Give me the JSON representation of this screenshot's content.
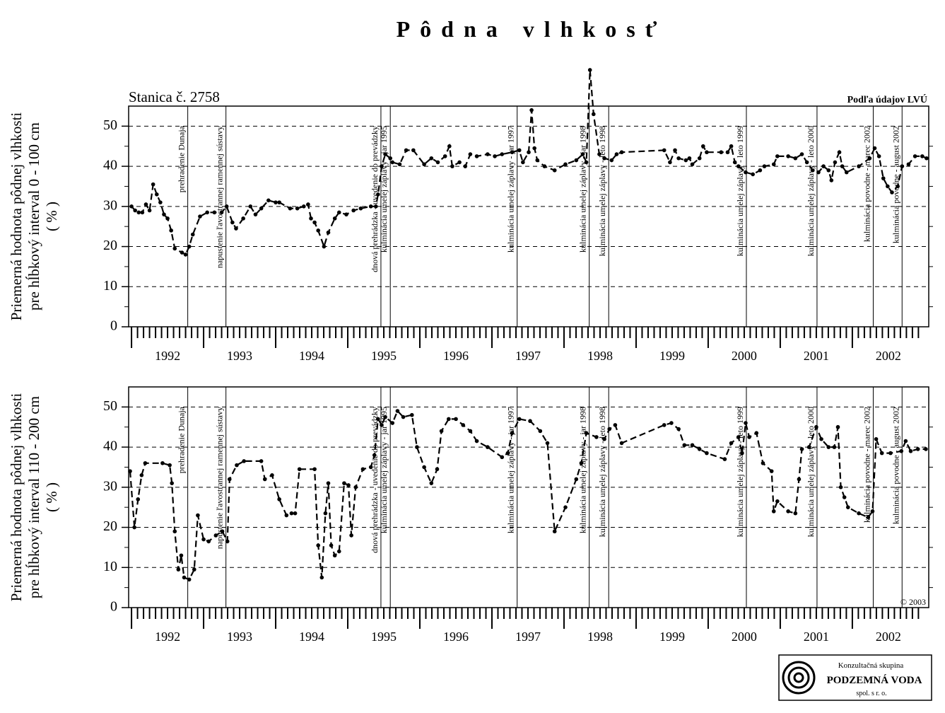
{
  "title": "Pôdna vlhkosť",
  "logo": {
    "line1": "Konzultačná skupina",
    "line2": "PODZEMNÁ VODA",
    "line3": "spol. s r. o."
  },
  "chart_data": [
    {
      "type": "line",
      "station": "Stanica č. 2758",
      "source": "Podľa údajov LVÚ",
      "ylabel": [
        "Priemerná hodnota pôdnej vlhkosti",
        "pre hĺbkový interval 0 - 100 cm",
        "( % )"
      ],
      "xlim": [
        1991.96,
        2003.06
      ],
      "ylim": [
        0,
        55
      ],
      "xticks": [
        1992,
        1993,
        1994,
        1995,
        1996,
        1997,
        1998,
        1999,
        2000,
        2001,
        2002
      ],
      "yticks": [
        0,
        10,
        20,
        30,
        40,
        50
      ],
      "grid": true,
      "events": [
        {
          "x": 1992.78,
          "label": "prehradenie Dunaja"
        },
        {
          "x": 1993.31,
          "label": "napustenie ľavostrannej ramennej sústavy"
        },
        {
          "x": 1995.46,
          "label": "dnová prehrádzka - uvedenie do prevádzky"
        },
        {
          "x": 1995.59,
          "label": "kulminácia umelej záplavy - jar 1995"
        },
        {
          "x": 1997.35,
          "label": "kulminácia umelej záplavy - jar 1997"
        },
        {
          "x": 1998.35,
          "label": "kulminácia umelej záplavy - jar 1998"
        },
        {
          "x": 1998.62,
          "label": "kulminácia umelej záplavy - leto 1998"
        },
        {
          "x": 2000.53,
          "label": "kulminácia umelej záplavy - leto 1999"
        },
        {
          "x": 2001.51,
          "label": "kulminácia umelej záplavy - leto 2000"
        },
        {
          "x": 2002.29,
          "label": "kulminácia povodne - marec 2002"
        },
        {
          "x": 2002.69,
          "label": "kulminácia povodne - august 2002"
        }
      ],
      "series": [
        {
          "color": "#000000",
          "x": [
            1992.0,
            1992.05,
            1992.1,
            1992.15,
            1992.2,
            1992.25,
            1992.3,
            1992.35,
            1992.4,
            1992.45,
            1992.5,
            1992.55,
            1992.6,
            1992.7,
            1992.75,
            1992.8,
            1992.85,
            1992.95,
            1993.05,
            1993.15,
            1993.25,
            1993.32,
            1993.4,
            1993.45,
            1993.55,
            1993.65,
            1993.72,
            1993.8,
            1993.9,
            1994.0,
            1994.05,
            1994.2,
            1994.3,
            1994.39,
            1994.45,
            1994.49,
            1994.54,
            1994.59,
            1994.67,
            1994.73,
            1994.82,
            1994.88,
            1994.98,
            1995.08,
            1995.18,
            1995.32,
            1995.39,
            1995.42,
            1995.47,
            1995.52,
            1995.59,
            1995.62,
            1995.72,
            1995.81,
            1995.91,
            1996.06,
            1996.16,
            1996.25,
            1996.35,
            1996.41,
            1996.45,
            1996.55,
            1996.63,
            1996.7,
            1996.79,
            1996.94,
            1997.04,
            1997.14,
            1997.28,
            1997.38,
            1997.43,
            1997.51,
            1997.55,
            1997.59,
            1997.63,
            1997.73,
            1997.87,
            1998.02,
            1998.17,
            1998.26,
            1998.31,
            1998.36,
            1998.41,
            1998.49,
            1998.56,
            1998.66,
            1998.73,
            1998.8,
            1999.39,
            1999.47,
            1999.54,
            1999.59,
            1999.69,
            1999.74,
            1999.78,
            1999.88,
            1999.93,
            1999.98,
            2000.18,
            2000.27,
            2000.32,
            2000.37,
            2000.42,
            2000.52,
            2000.62,
            2000.72,
            2000.78,
            2000.91,
            2000.96,
            2001.11,
            2001.21,
            2001.3,
            2001.37,
            2001.45,
            2001.53,
            2001.6,
            2001.67,
            2001.71,
            2001.76,
            2001.82,
            2001.86,
            2001.92,
            2002.09,
            2002.24,
            2002.31,
            2002.37,
            2002.43,
            2002.49,
            2002.55,
            2002.63,
            2002.69,
            2002.78,
            2002.87,
            2002.97,
            2003.03
          ],
          "values": [
            30,
            29,
            28.5,
            28.5,
            30.5,
            29,
            35.5,
            33,
            31,
            28,
            27,
            24,
            19.5,
            18.5,
            18,
            20,
            23,
            27.5,
            28.5,
            28.5,
            28.5,
            30,
            26,
            24.5,
            27,
            30,
            28,
            29.5,
            31.5,
            31,
            31,
            29.5,
            29.5,
            30,
            30.5,
            27,
            26,
            24,
            20,
            23.5,
            27,
            28.5,
            28,
            29,
            29.5,
            30,
            30,
            33,
            40,
            43,
            42,
            41,
            40.5,
            44,
            44,
            40.5,
            42,
            41,
            42.5,
            45,
            40,
            41,
            40,
            43,
            42.5,
            43,
            42.5,
            43,
            43.5,
            44,
            41,
            43.5,
            54,
            44.5,
            41.5,
            40,
            39,
            40.5,
            41.5,
            43,
            41,
            64,
            53,
            43,
            42,
            41.5,
            43,
            43.5,
            44,
            41,
            44,
            42,
            41.5,
            42,
            40.5,
            42,
            45,
            43.5,
            43.5,
            43.5,
            45,
            41,
            40,
            38.5,
            38,
            39,
            40,
            40.5,
            42.5,
            42.5,
            42,
            43,
            41,
            39,
            38.5,
            40,
            39,
            36.5,
            41,
            43.5,
            40,
            38.5,
            40,
            42,
            44.5,
            42.5,
            37,
            35,
            33.5,
            35,
            40,
            40.5,
            42.5,
            42.5,
            42
          ]
        }
      ]
    },
    {
      "type": "line",
      "copyright": "© 2003",
      "ylabel": [
        "Priemerná hodnota pôdnej vlhkosti",
        "pre hĺbkový interval 110 - 200 cm",
        "( % )"
      ],
      "xlim": [
        1991.96,
        2003.06
      ],
      "ylim": [
        0,
        55
      ],
      "xticks": [
        1992,
        1993,
        1994,
        1995,
        1996,
        1997,
        1998,
        1999,
        2000,
        2001,
        2002
      ],
      "yticks": [
        0,
        10,
        20,
        30,
        40,
        50
      ],
      "grid": true,
      "events": [
        {
          "x": 1992.78,
          "label": "prehradenie Dunaja"
        },
        {
          "x": 1993.31,
          "label": "napustenie ľavostrannej ramennej sústavy"
        },
        {
          "x": 1995.46,
          "label": "dnová prehrádzka - uvedenie do prevádzky"
        },
        {
          "x": 1995.59,
          "label": "kulminácia umelej záplavy - jar 1995"
        },
        {
          "x": 1997.35,
          "label": "kulminácia umelej záplavy - jar 1997"
        },
        {
          "x": 1998.35,
          "label": "kulminácia umelej záplavy - jar 1998"
        },
        {
          "x": 1998.62,
          "label": "kulminácia umelej záplavy - leto 1998"
        },
        {
          "x": 2000.53,
          "label": "kulminácia umelej záplavy - leto 1999"
        },
        {
          "x": 2001.51,
          "label": "kulminácia umelej záplavy - leto 2000"
        },
        {
          "x": 2002.29,
          "label": "kulminácia povodne - marec 2002"
        },
        {
          "x": 2002.69,
          "label": "kulminácia povodne - august 2002"
        }
      ],
      "series": [
        {
          "color": "#000000",
          "x": [
            1991.98,
            1992.04,
            1992.09,
            1992.14,
            1992.19,
            1992.43,
            1992.53,
            1992.56,
            1992.6,
            1992.65,
            1992.69,
            1992.73,
            1992.8,
            1992.87,
            1992.92,
            1993.0,
            1993.07,
            1993.17,
            1993.26,
            1993.33,
            1993.36,
            1993.46,
            1993.56,
            1993.8,
            1993.85,
            1993.95,
            1994.05,
            1994.15,
            1994.22,
            1994.27,
            1994.33,
            1994.54,
            1994.59,
            1994.64,
            1994.69,
            1994.73,
            1994.77,
            1994.82,
            1994.88,
            1994.95,
            1995.01,
            1995.05,
            1995.11,
            1995.21,
            1995.32,
            1995.37,
            1995.42,
            1995.47,
            1995.52,
            1995.62,
            1995.69,
            1995.77,
            1995.89,
            1995.96,
            1996.06,
            1996.16,
            1996.24,
            1996.3,
            1996.4,
            1996.5,
            1996.6,
            1996.7,
            1996.79,
            1996.94,
            1997.14,
            1997.22,
            1997.28,
            1997.38,
            1997.53,
            1997.67,
            1997.77,
            1997.87,
            1998.02,
            1998.17,
            1998.24,
            1998.31,
            1998.45,
            1998.56,
            1998.63,
            1998.71,
            1998.8,
            1999.39,
            1999.49,
            1999.59,
            1999.67,
            1999.78,
            1999.88,
            1999.98,
            2000.23,
            2000.32,
            2000.42,
            2000.47,
            2000.52,
            2000.57,
            2000.67,
            2000.76,
            2000.88,
            2000.91,
            2000.96,
            2001.11,
            2001.21,
            2001.26,
            2001.3,
            2001.4,
            2001.5,
            2001.57,
            2001.67,
            2001.75,
            2001.8,
            2001.84,
            2001.89,
            2001.94,
            2002.09,
            2002.22,
            2002.28,
            2002.33,
            2002.41,
            2002.53,
            2002.68,
            2002.74,
            2002.81,
            2002.91,
            2003.02
          ],
          "values": [
            34,
            20,
            27,
            33,
            36,
            36,
            35.5,
            31,
            19,
            9.5,
            13,
            7.5,
            7,
            9.5,
            23,
            17,
            16.5,
            18,
            19,
            16.5,
            32,
            35.5,
            36.5,
            36.5,
            32,
            33,
            27,
            23,
            23.5,
            23.5,
            34.5,
            34.5,
            15.5,
            7.5,
            23.5,
            31,
            15.5,
            13,
            14,
            31,
            30.5,
            18,
            30,
            34.5,
            35,
            38,
            47,
            45.5,
            47.5,
            46,
            49,
            47.5,
            48,
            40,
            35,
            31,
            34.5,
            44,
            47,
            47,
            45.5,
            44,
            41.5,
            40,
            37.5,
            38.5,
            43.5,
            47,
            46.5,
            44,
            41,
            19,
            25,
            32,
            36,
            43.5,
            42.5,
            42,
            44.5,
            45.5,
            41,
            45.5,
            46,
            44.5,
            40.5,
            40.5,
            39.5,
            38.5,
            37,
            41,
            42.5,
            38.5,
            46,
            42.5,
            43.5,
            36,
            34,
            24,
            26.5,
            24,
            23.5,
            32,
            39.5,
            40,
            45,
            42,
            40,
            40,
            45,
            30,
            27.5,
            25,
            23.5,
            22.5,
            24,
            42,
            38.5,
            38.5,
            39,
            41.5,
            39,
            39.5,
            39.5
          ]
        }
      ]
    }
  ]
}
